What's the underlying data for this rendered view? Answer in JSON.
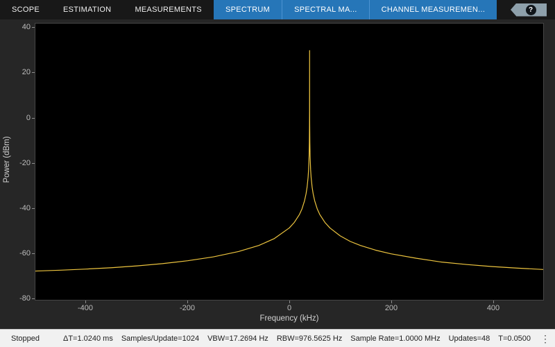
{
  "toolbar": {
    "tabs": [
      {
        "label": "SCOPE"
      },
      {
        "label": "ESTIMATION"
      },
      {
        "label": "MEASUREMENTS"
      },
      {
        "label": "SPECTRUM"
      },
      {
        "label": "SPECTRAL MA..."
      },
      {
        "label": "CHANNEL MEASUREMEN..."
      }
    ],
    "help_label": "?"
  },
  "chart_data": {
    "type": "line",
    "title": "",
    "xlabel": "Frequency (kHz)",
    "ylabel": "Power (dBm)",
    "xlim": [
      -500,
      500
    ],
    "ylim": [
      -80,
      40
    ],
    "xticks": [
      -400,
      -200,
      0,
      200,
      400
    ],
    "yticks": [
      40,
      20,
      0,
      -20,
      -40,
      -60,
      -80
    ],
    "grid": false,
    "legend": "none",
    "background": "#000000",
    "line_color": "#eec53f",
    "series": [
      {
        "name": "Spectrum",
        "x": [
          -500,
          -450,
          -400,
          -350,
          -300,
          -250,
          -200,
          -150,
          -100,
          -60,
          -30,
          0,
          10,
          20,
          25,
          30,
          33,
          35,
          37,
          38,
          39,
          39.5,
          39.8,
          39.9,
          40,
          40.1,
          40.2,
          40.5,
          41,
          42,
          43,
          45,
          47,
          50,
          55,
          60,
          70,
          80,
          100,
          120,
          140,
          170,
          200,
          250,
          300,
          350,
          400,
          450,
          500
        ],
        "y": [
          -68.2,
          -67.8,
          -67.3,
          -66.7,
          -65.9,
          -64.9,
          -63.6,
          -61.9,
          -59.5,
          -56.8,
          -53.8,
          -49.0,
          -46.5,
          -43.0,
          -40.5,
          -36.9,
          -33.8,
          -30.9,
          -26.5,
          -23.0,
          -16.9,
          -10.9,
          -3.0,
          3.1,
          30,
          3.1,
          -3.0,
          -10.9,
          -16.9,
          -23.0,
          -26.5,
          -30.9,
          -33.8,
          -36.9,
          -40.5,
          -43.0,
          -46.5,
          -49.0,
          -52.5,
          -55.0,
          -56.8,
          -58.9,
          -60.5,
          -62.5,
          -64.2,
          -65.3,
          -66.2,
          -66.9,
          -67.5
        ]
      }
    ],
    "peak_frequency_khz": 40,
    "peak_power_dbm": 30,
    "noise_floor_dbm": -68
  },
  "status_bar": {
    "state": "Stopped",
    "items": [
      "ΔT=1.0240 ms",
      "Samples/Update=1024",
      "VBW=17.2694 Hz",
      "RBW=976.5625 Hz",
      "Sample Rate=1.0000 MHz",
      "Updates=48",
      "T=0.0500"
    ],
    "menu_icon": "⋮"
  },
  "colors": {
    "toolbar_bg": "#181818",
    "contextual_tab_blue": "#2676b8",
    "plot_bg": "#000000",
    "frame_bg": "#262626",
    "trace": "#eec53f",
    "status_bg": "#f1f1f1"
  }
}
